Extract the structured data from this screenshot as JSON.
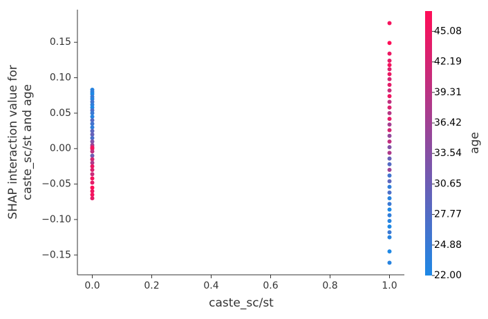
{
  "chart_data": {
    "type": "scatter",
    "xlabel": "caste_sc/st",
    "ylabel": [
      "SHAP interaction value for",
      "caste_sc/st and age"
    ],
    "colorbar_label": "age",
    "xlim": [
      -0.05,
      1.05
    ],
    "ylim": [
      -0.178,
      0.196
    ],
    "xticks": [
      {
        "value": 0,
        "label": "0.0"
      },
      {
        "value": 0.2,
        "label": "0.2"
      },
      {
        "value": 0.4,
        "label": "0.4"
      },
      {
        "value": 0.6,
        "label": "0.6"
      },
      {
        "value": 0.8,
        "label": "0.8"
      },
      {
        "value": 1,
        "label": "1.0"
      }
    ],
    "yticks": [
      {
        "value": -0.15,
        "label": "−0.15"
      },
      {
        "value": -0.1,
        "label": "−0.10"
      },
      {
        "value": -0.05,
        "label": "−0.05"
      },
      {
        "value": 0,
        "label": "0.00"
      },
      0.05,
      {
        "value": 0.1,
        "label": "0.10"
      },
      0.15
    ],
    "clim": [
      22,
      47
    ],
    "cticks": [
      {
        "value": 22,
        "label": "22.00"
      },
      24.88,
      27.77,
      30.65,
      33.54,
      36.42,
      39.31,
      42.19,
      45.08
    ],
    "cmap": [
      "#1e88e5",
      "#ff0d57"
    ],
    "x": [
      0,
      0,
      0,
      0,
      0,
      0,
      0,
      0,
      0,
      0,
      0,
      0,
      0,
      0,
      0,
      0,
      0,
      0,
      0,
      0,
      0,
      0,
      0,
      0,
      0,
      0,
      0,
      0,
      0,
      0,
      0,
      0,
      0,
      0,
      1,
      1,
      1,
      1,
      1,
      1,
      1,
      1,
      1,
      1,
      1,
      1,
      1,
      1,
      1,
      1,
      1,
      1,
      1,
      1,
      1,
      1,
      1,
      1,
      1,
      1,
      1,
      1,
      1,
      1,
      1,
      1,
      1,
      1,
      1,
      1,
      1,
      1
    ],
    "values": [
      0.083,
      0.08,
      0.077,
      0.073,
      0.07,
      0.066,
      0.062,
      0.058,
      0.054,
      0.05,
      0.045,
      0.04,
      0.035,
      0.03,
      0.025,
      0.02,
      0.015,
      0.01,
      0.005,
      0.002,
      0.0,
      -0.004,
      -0.01,
      -0.015,
      -0.02,
      -0.025,
      -0.03,
      -0.036,
      -0.042,
      -0.048,
      -0.055,
      -0.06,
      -0.065,
      -0.07,
      0.177,
      0.149,
      0.134,
      0.124,
      0.118,
      0.112,
      0.105,
      0.098,
      0.09,
      0.082,
      0.074,
      0.066,
      0.058,
      0.05,
      0.042,
      0.034,
      0.026,
      0.018,
      0.01,
      0.002,
      -0.006,
      -0.014,
      -0.022,
      -0.03,
      -0.038,
      -0.046,
      -0.054,
      -0.062,
      -0.07,
      -0.078,
      -0.086,
      -0.094,
      -0.102,
      -0.11,
      -0.118,
      -0.125,
      -0.145,
      -0.161
    ],
    "color_values": [
      23,
      24,
      22,
      25,
      23,
      26,
      24,
      22,
      27,
      25,
      23,
      28,
      26,
      24,
      29,
      30,
      27,
      33,
      36,
      44,
      46,
      40,
      31,
      42,
      38,
      45,
      43,
      41,
      46,
      44,
      47,
      45,
      46,
      44,
      46,
      47,
      45,
      44,
      46,
      43,
      45,
      42,
      44,
      41,
      45,
      40,
      43,
      39,
      44,
      37,
      42,
      35,
      40,
      33,
      38,
      30,
      28,
      36,
      26,
      29,
      24,
      27,
      23,
      25,
      22,
      24,
      23,
      22,
      25,
      23,
      22,
      23
    ]
  }
}
